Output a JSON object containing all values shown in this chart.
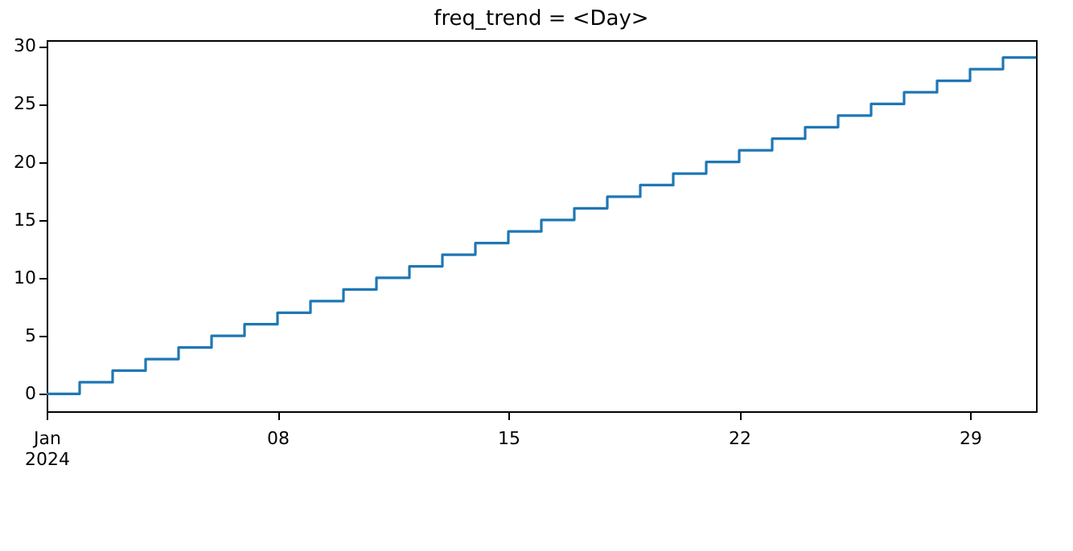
{
  "chart_data": {
    "type": "step",
    "title": "freq_trend = <Day>",
    "x": [
      "2024-01-01",
      "2024-01-02",
      "2024-01-03",
      "2024-01-04",
      "2024-01-05",
      "2024-01-06",
      "2024-01-07",
      "2024-01-08",
      "2024-01-09",
      "2024-01-10",
      "2024-01-11",
      "2024-01-12",
      "2024-01-13",
      "2024-01-14",
      "2024-01-15",
      "2024-01-16",
      "2024-01-17",
      "2024-01-18",
      "2024-01-19",
      "2024-01-20",
      "2024-01-21",
      "2024-01-22",
      "2024-01-23",
      "2024-01-24",
      "2024-01-25",
      "2024-01-26",
      "2024-01-27",
      "2024-01-28",
      "2024-01-29",
      "2024-01-30",
      "2024-01-31"
    ],
    "series": [
      {
        "color": "#1f77b4",
        "values": [
          0,
          1,
          2,
          3,
          4,
          5,
          6,
          7,
          8,
          9,
          10,
          11,
          12,
          13,
          14,
          15,
          16,
          17,
          18,
          19,
          20,
          21,
          22,
          23,
          24,
          25,
          26,
          27,
          28,
          29,
          29
        ]
      }
    ],
    "xlim": [
      "2024-01-01",
      "2024-01-31"
    ],
    "xticks": [
      {
        "value": "2024-01-01",
        "label": "Jan\n2024"
      },
      {
        "value": "2024-01-08",
        "label": "08"
      },
      {
        "value": "2024-01-15",
        "label": "15"
      },
      {
        "value": "2024-01-22",
        "label": "22"
      },
      {
        "value": "2024-01-29",
        "label": "29"
      }
    ],
    "ylim": [
      -1.5,
      30.5
    ],
    "yticks": [
      0,
      5,
      10,
      15,
      20,
      25,
      30
    ],
    "grid": false,
    "legend": false
  }
}
